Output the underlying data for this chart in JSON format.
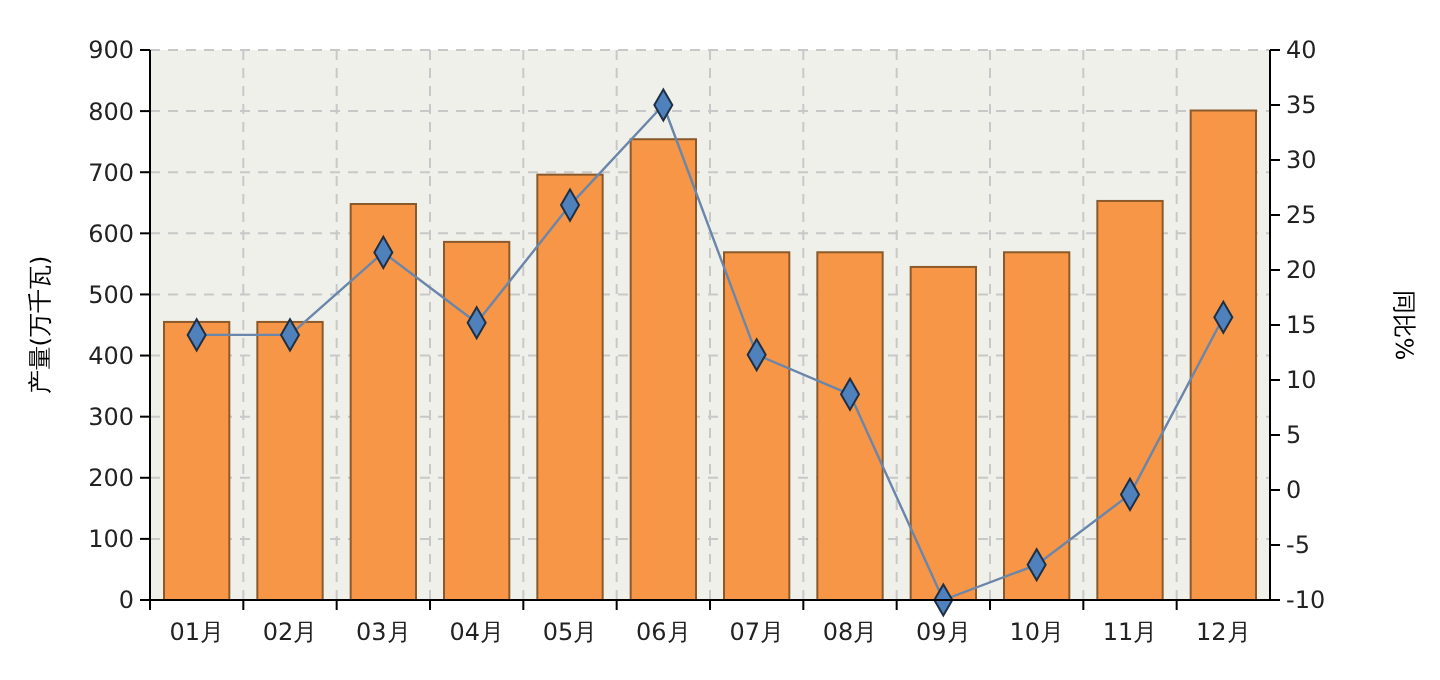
{
  "chart_data": {
    "type": "bar",
    "ylabel": "产量(万千瓦)",
    "y2label": "同比%",
    "categories": [
      "01月",
      "02月",
      "03月",
      "04月",
      "05月",
      "06月",
      "07月",
      "08月",
      "09月",
      "10月",
      "11月",
      "12月"
    ],
    "series": [
      {
        "color": "#f79646",
        "values": [
          455,
          455,
          648,
          586,
          696,
          754,
          569,
          569,
          545,
          569,
          653,
          801
        ]
      },
      {
        "type": "line",
        "axis": "y2",
        "color": "#4f81bd",
        "marker": "diamond",
        "values": [
          14.1,
          14.1,
          21.6,
          15.2,
          25.9,
          35.0,
          12.3,
          8.7,
          -10,
          -6.8,
          -0.4,
          15.7
        ]
      }
    ],
    "ylim": [
      0,
      900
    ],
    "yticks": [
      0,
      100,
      200,
      300,
      400,
      500,
      600,
      700,
      800,
      900
    ],
    "y2lim": [
      -10,
      40
    ],
    "y2ticks": [
      -10,
      -5,
      0,
      5,
      10,
      15,
      20,
      25,
      30,
      35,
      40
    ],
    "grid": true
  }
}
